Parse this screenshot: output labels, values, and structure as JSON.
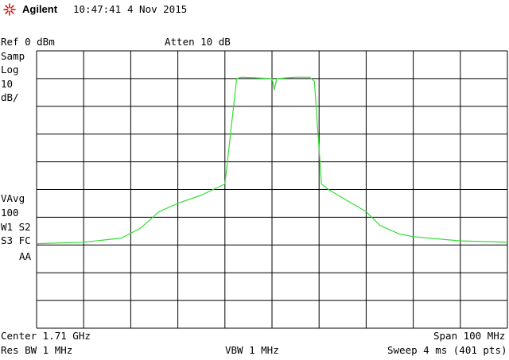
{
  "header": {
    "brand": "Agilent",
    "time": "10:47:41",
    "date": "4 Nov 2015"
  },
  "settings": {
    "ref": "Ref 0 dBm",
    "atten": "Atten 10 dB",
    "samp": "Samp",
    "log": "Log",
    "scale_value": "10",
    "scale_unit": "dB/",
    "vavg": "VAvg",
    "vavg_count": "100",
    "w1s2": "W1 S2",
    "s3fc": "S3 FC",
    "aa": "AA"
  },
  "footer": {
    "center": "Center 1.71 GHz",
    "span": "Span 100 MHz",
    "res_bw": "Res BW 1 MHz",
    "vbw": "VBW 1 MHz",
    "sweep": "Sweep 4 ms (401 pts)"
  },
  "colors": {
    "trace": "#33dd33",
    "grid": "#000000",
    "logo": "#cc0000"
  },
  "chart_data": {
    "type": "line",
    "x_unit": "MHz",
    "y_unit": "dBm",
    "xlim": [
      1660,
      1760
    ],
    "ylim": [
      -100,
      0
    ],
    "grid": true,
    "grid_divisions": {
      "x": 10,
      "y": 10
    },
    "series": [
      {
        "x": [
          1660,
          1670,
          1678,
          1682,
          1686,
          1690,
          1695,
          1700,
          1702.5,
          1703.5,
          1710,
          1710.5,
          1711,
          1715,
          1718,
          1719,
          1720.5,
          1722,
          1726,
          1730,
          1733,
          1737,
          1740,
          1750,
          1760
        ],
        "y": [
          -69.5,
          -69,
          -67.5,
          -64,
          -58,
          -55,
          -52,
          -48,
          -10,
          -9.5,
          -10,
          -14,
          -10,
          -9.5,
          -9.5,
          -11,
          -48,
          -50,
          -54,
          -58,
          -63,
          -66,
          -67,
          -68.5,
          -69
        ]
      }
    ]
  }
}
